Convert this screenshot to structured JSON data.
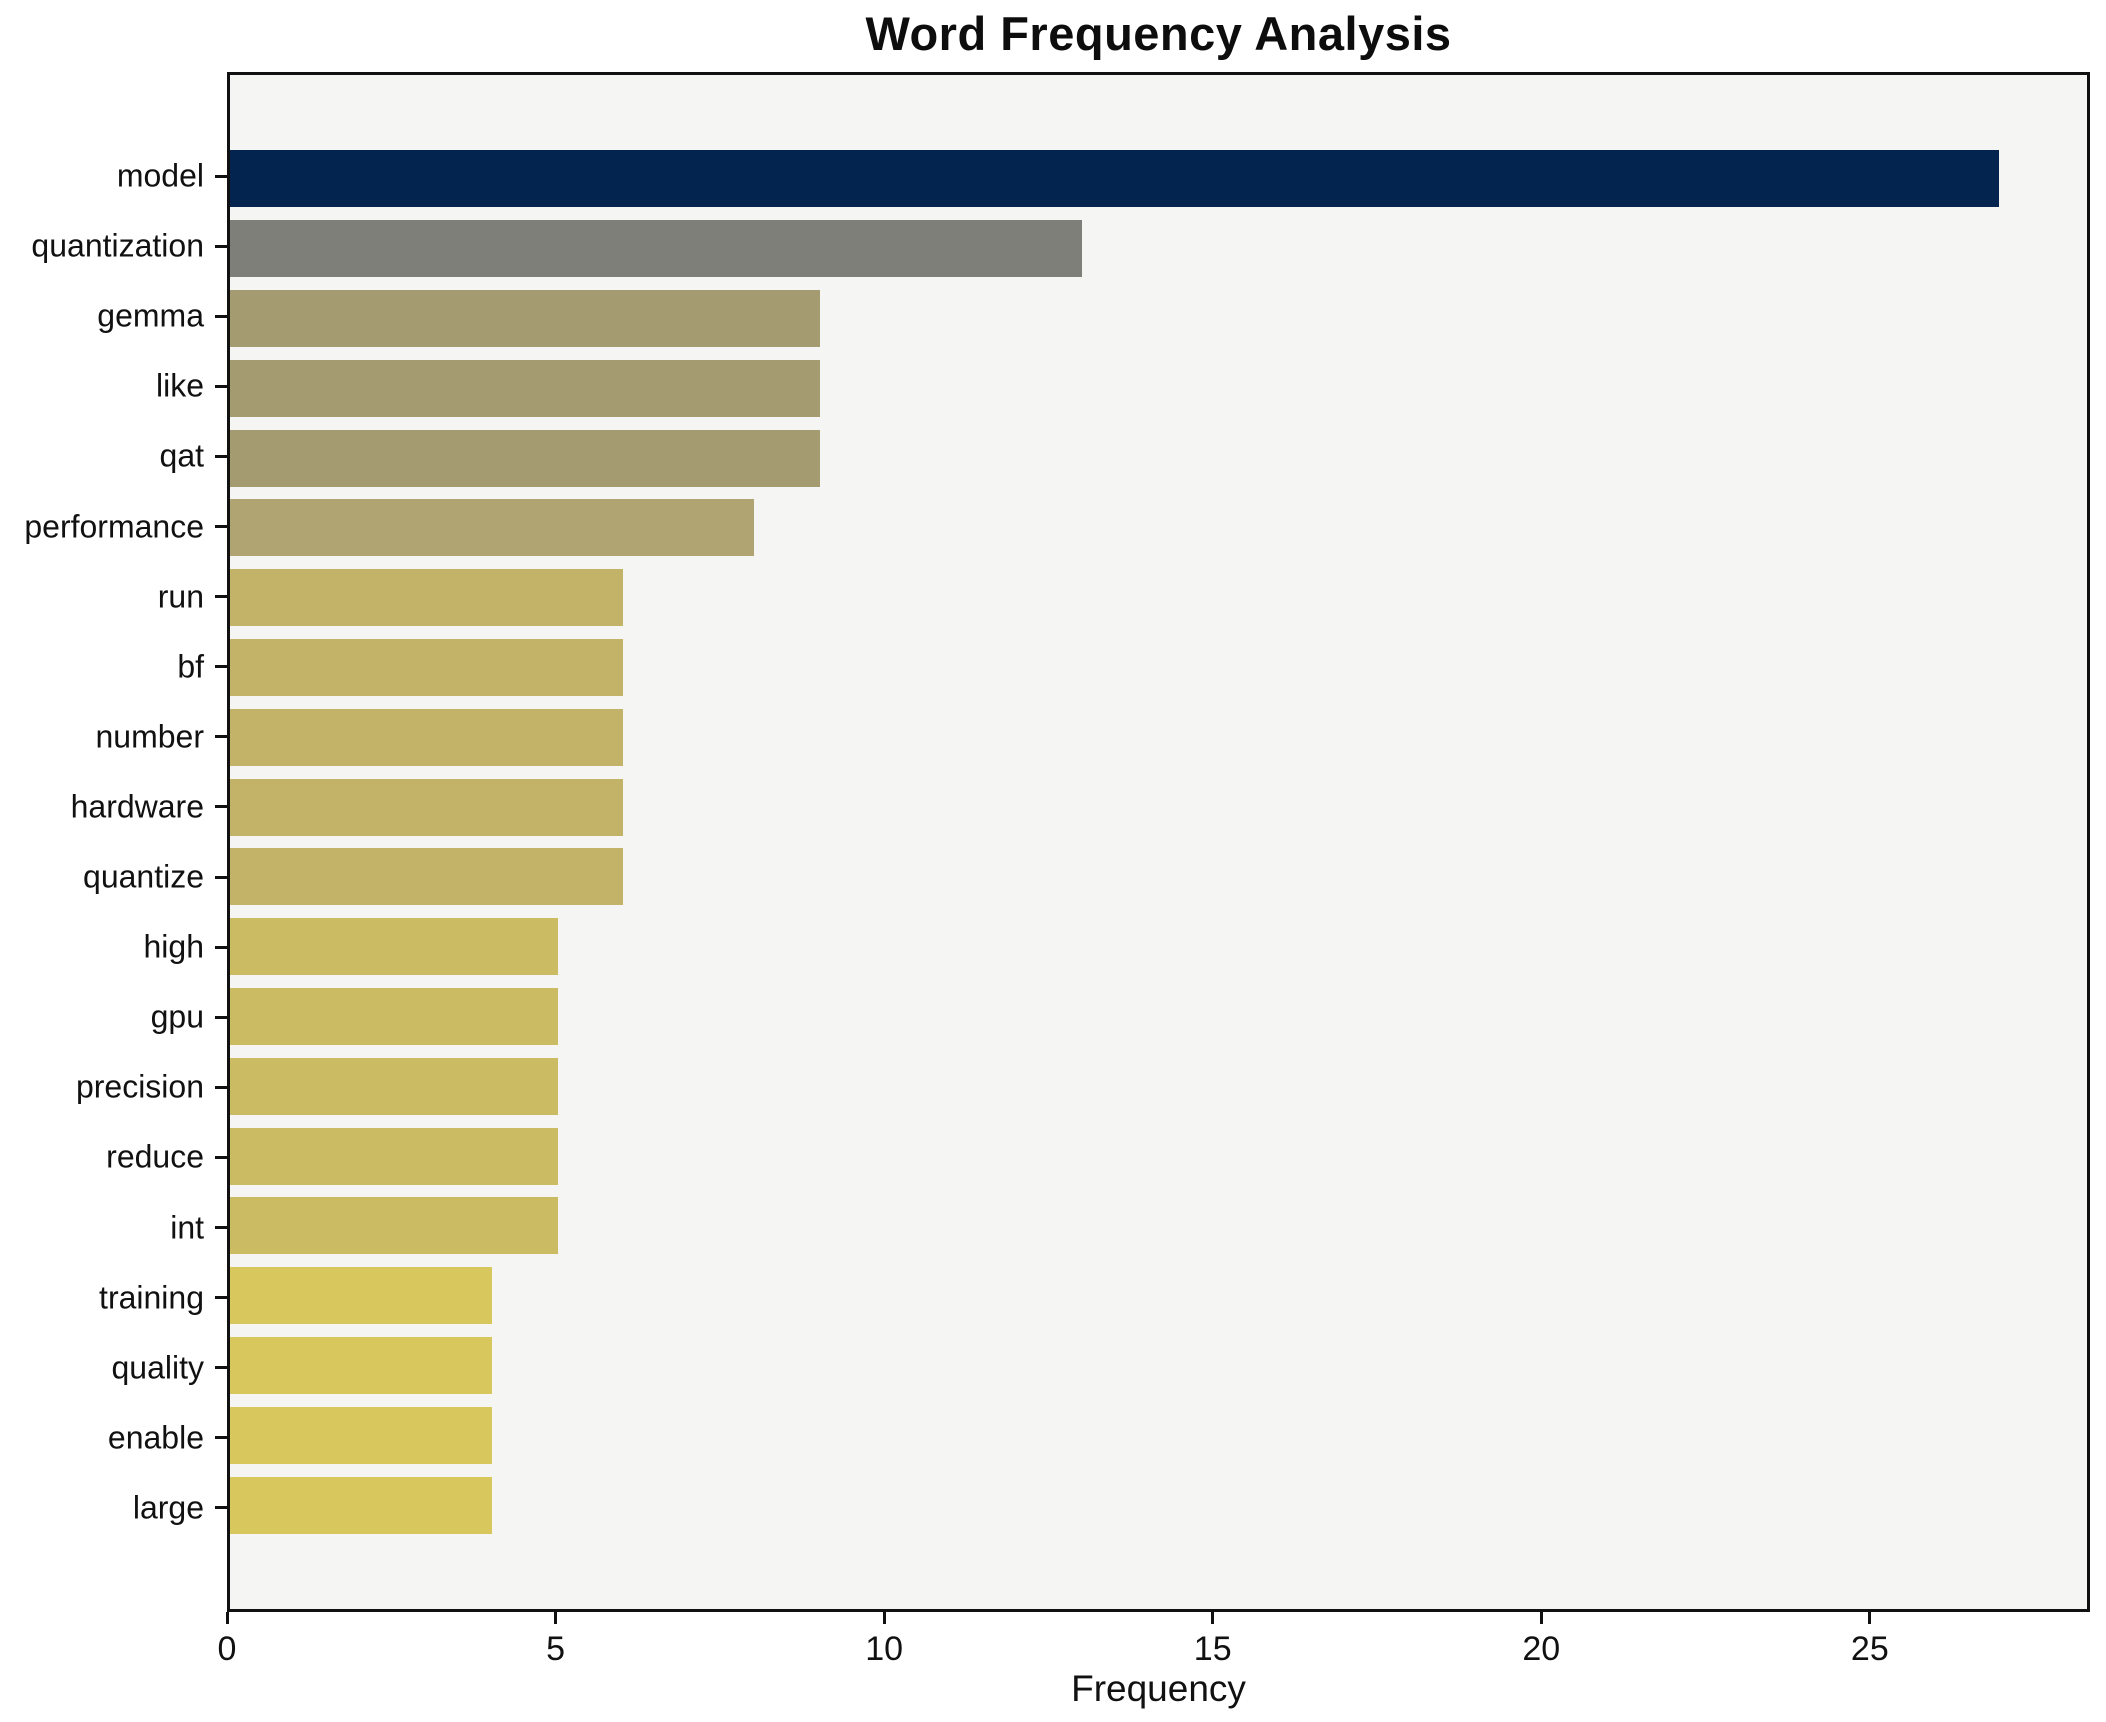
{
  "chart_data": {
    "type": "bar",
    "orientation": "horizontal",
    "title": "Word Frequency Analysis",
    "xlabel": "Frequency",
    "ylabel": "",
    "grid": false,
    "legend": false,
    "xlim": [
      0,
      28.35
    ],
    "x_ticks": [
      0,
      5,
      10,
      15,
      20,
      25
    ],
    "categories": [
      "model",
      "quantization",
      "gemma",
      "like",
      "qat",
      "performance",
      "run",
      "bf",
      "number",
      "hardware",
      "quantize",
      "high",
      "gpu",
      "precision",
      "reduce",
      "int",
      "training",
      "quality",
      "enable",
      "large"
    ],
    "values": [
      27,
      13,
      9,
      9,
      9,
      8,
      6,
      6,
      6,
      6,
      6,
      5,
      5,
      5,
      5,
      5,
      4,
      4,
      4,
      4
    ],
    "bar_colors": [
      "#042450",
      "#7e7f78",
      "#a59b71",
      "#a59b71",
      "#a59b71",
      "#b0a473",
      "#c2b368",
      "#c2b368",
      "#c2b368",
      "#c2b368",
      "#c2b368",
      "#cbbb62",
      "#cbbb62",
      "#cbbb62",
      "#cbbb62",
      "#cbbb62",
      "#d8c75c",
      "#d8c75c",
      "#d8c75c",
      "#d8c75c"
    ],
    "plot_background": "#f5f5f3",
    "figure_background": "#ffffff",
    "spine_color": "#111111"
  }
}
